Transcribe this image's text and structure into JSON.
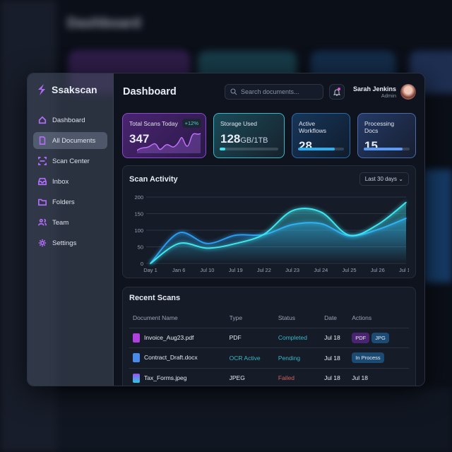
{
  "app": {
    "name": "Ssakscan"
  },
  "sidebar": {
    "items": [
      {
        "label": "Dashboard",
        "icon": "home-icon"
      },
      {
        "label": "All Documents",
        "icon": "document-icon",
        "active": true
      },
      {
        "label": "Scan Center",
        "icon": "scan-icon"
      },
      {
        "label": "Inbox",
        "icon": "inbox-icon"
      },
      {
        "label": "Folders",
        "icon": "folder-icon"
      },
      {
        "label": "Team",
        "icon": "team-icon"
      },
      {
        "label": "Settings",
        "icon": "gear-icon"
      }
    ]
  },
  "header": {
    "title": "Dashboard",
    "search_placeholder": "Search documents...",
    "user_name": "Sarah Jenkins",
    "user_role": "Admin"
  },
  "stats": [
    {
      "label": "Total Scans Today",
      "value": "347",
      "badge": "+12%"
    },
    {
      "label": "Storage Used",
      "value": "128",
      "unit": "GB/1TB",
      "progress": 0.1
    },
    {
      "label": "Active Workflows",
      "value": "28",
      "progress": 0.8
    },
    {
      "label": "Processing Docs",
      "value": "15",
      "progress": 0.85
    }
  ],
  "activity": {
    "title": "Scan Activity",
    "range": "Last 30 days"
  },
  "chart_data": {
    "type": "area",
    "categories": [
      "Day 1",
      "Jan 6",
      "Jul 10",
      "Jul 19",
      "Jul 22",
      "Jul 23",
      "Jul 24",
      "Jul 25",
      "Jul 26",
      "Jul 18"
    ],
    "ylim": [
      0,
      200
    ],
    "yticks": [
      0,
      50,
      100,
      150,
      200
    ],
    "grid": true,
    "series": [
      {
        "values": [
          0,
          60,
          46,
          60,
          88,
          159,
          155,
          85,
          117,
          184
        ],
        "color": "#3ee6f0"
      },
      {
        "values": [
          0,
          92,
          60,
          85,
          87,
          117,
          120,
          83,
          102,
          136
        ],
        "color": "#2a9cf0"
      }
    ]
  },
  "recent": {
    "title": "Recent Scans",
    "columns": [
      "Document Name",
      "Type",
      "Status",
      "Date",
      "Actions"
    ],
    "rows": [
      {
        "name": "Invoice_Aug23.pdf",
        "type": "PDF",
        "status": "Completed",
        "date": "Jul 18",
        "actions": [
          "PDF",
          "JPG"
        ]
      },
      {
        "name": "Contract_Draft.docx",
        "type": "OCR Active",
        "status": "Pending",
        "date": "Jul 18",
        "actions": [
          "In Process"
        ]
      },
      {
        "name": "Tax_Forms.jpeg",
        "type": "JPEG",
        "status": "Failed",
        "date": "Jul 18",
        "actions_text": "Jul 18"
      }
    ]
  },
  "colors": {
    "accent": "#b06cf5",
    "cyan": "#3ee6f0",
    "completed": "#3ab8c8",
    "failed": "#d06060"
  }
}
